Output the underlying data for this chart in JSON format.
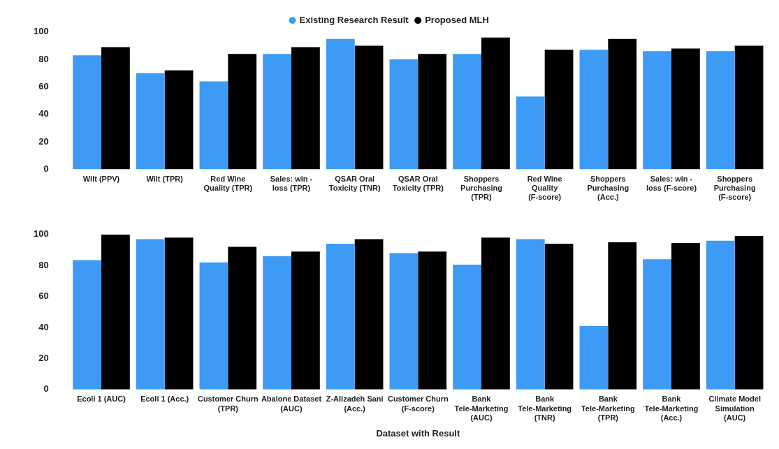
{
  "chart_data": [
    {
      "type": "bar",
      "categories": [
        "Wilt (PPV)",
        "Wilt (TPR)",
        "Red Wine Quality (TPR)",
        "Sales: win - loss (TPR)",
        "QSAR Oral Toxicity (TNR)",
        "QSAR Oral Toxicity (TPR)",
        "Shoppers Purchasing (TPR)",
        "Red Wine Quality (F-score)",
        "Shoppers Purchasing (Acc.)",
        "Sales: win - loss (F-score)",
        "Shoppers Purchasing (F-score)"
      ],
      "series": [
        {
          "name": "Existing Research Result",
          "color": "#3d9bf5",
          "values": [
            83,
            70,
            64,
            84,
            95,
            80,
            84,
            53,
            87,
            86,
            86
          ]
        },
        {
          "name": "Proposed MLH",
          "color": "#000000",
          "values": [
            89,
            72,
            84,
            89,
            90,
            84,
            96,
            87,
            95,
            88,
            90
          ]
        }
      ],
      "ylim": [
        0,
        100
      ],
      "yticks": [
        0,
        20,
        40,
        60,
        80,
        100
      ],
      "grid": false,
      "legend": "top"
    },
    {
      "type": "bar",
      "categories": [
        "Ecoli 1 (AUC)",
        "Ecoli 1 (Acc.)",
        "Customer Churn (TPR)",
        "Abalone Dataset (AUC)",
        "Z-Alizadeh Sani (Acc.)",
        "Customer Churn (F-score)",
        "Bank Tele-Marketing (AUC)",
        "Bank Tele-Marketing (TNR)",
        "Bank Tele-Marketing (TPR)",
        "Bank Tele-Marketing (Acc.)",
        "Climate Model Simulation (AUC)"
      ],
      "series": [
        {
          "color": "#3d9bf5",
          "values": [
            83.5,
            97,
            82,
            86,
            94,
            88,
            80.5,
            97,
            41,
            84,
            96
          ]
        },
        {
          "color": "#000000",
          "values": [
            100,
            98,
            92,
            89,
            97,
            89,
            98,
            94,
            95,
            94.5,
            99
          ]
        }
      ],
      "xlabel": "Dataset with Result",
      "ylim": [
        0,
        100
      ],
      "yticks": [
        0,
        20,
        40,
        60,
        80,
        100
      ],
      "grid": false,
      "legend": false
    }
  ]
}
